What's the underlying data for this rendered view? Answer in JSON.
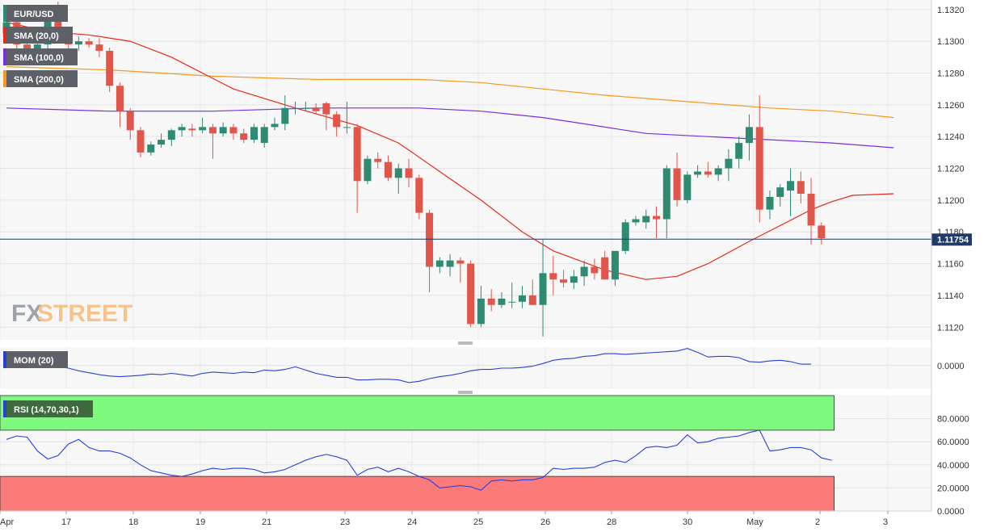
{
  "symbol": "EUR/USD",
  "indicators": {
    "sma20": "SMA (20,0)",
    "sma100": "SMA (100,0)",
    "sma200": "SMA (200,0)",
    "mom": "MOM (20)",
    "rsi": "RSI (14,70,30,1)"
  },
  "watermark": {
    "fx": "FX",
    "street": "STREET"
  },
  "colors": {
    "bull": "#2e8b72",
    "bear": "#e0564b",
    "sma20": "#e8291c",
    "sma100": "#7b2ee0",
    "sma200": "#f59a1e",
    "mom": "#2a3fd6",
    "rsi": "#2a3fd6",
    "overbought_band": "#7dfa7d",
    "oversold_band": "#fb7a7a",
    "price_line": "#1f3a6b"
  },
  "chart_data": [
    {
      "type": "candlestick",
      "timeframe": "4h",
      "ylim": [
        1.1112,
        1.1326
      ],
      "y_ticks": [
        "1.1320",
        "1.1300",
        "1.1280",
        "1.1260",
        "1.1240",
        "1.1220",
        "1.1200",
        "1.1180",
        "1.1160",
        "1.1140",
        "1.1120"
      ],
      "x_ticks": [
        "Apr",
        "17",
        "18",
        "19",
        "21",
        "23",
        "24",
        "25",
        "26",
        "28",
        "30",
        "May",
        "2",
        "3"
      ],
      "last_price": "1.11754",
      "last_price_value": 1.11754,
      "candles": [
        [
          1.1305,
          1.1318,
          1.13,
          1.1312
        ],
        [
          1.1312,
          1.1316,
          1.1294,
          1.1298
        ],
        [
          1.1298,
          1.1306,
          1.1288,
          1.1292
        ],
        [
          1.1292,
          1.1302,
          1.1286,
          1.1298
        ],
        [
          1.1298,
          1.1322,
          1.1294,
          1.1316
        ],
        [
          1.1316,
          1.1325,
          1.13,
          1.1304
        ],
        [
          1.1304,
          1.1306,
          1.1292,
          1.1298
        ],
        [
          1.1298,
          1.1303,
          1.1294,
          1.13
        ],
        [
          1.13,
          1.1302,
          1.1296,
          1.1298
        ],
        [
          1.1298,
          1.1302,
          1.129,
          1.1294
        ],
        [
          1.1294,
          1.1296,
          1.1268,
          1.1272
        ],
        [
          1.1272,
          1.1274,
          1.1246,
          1.1256
        ],
        [
          1.1256,
          1.1258,
          1.1238,
          1.1244
        ],
        [
          1.1244,
          1.1246,
          1.1227,
          1.123
        ],
        [
          1.123,
          1.1237,
          1.1228,
          1.1235
        ],
        [
          1.1235,
          1.1242,
          1.1233,
          1.1238
        ],
        [
          1.1238,
          1.1245,
          1.1234,
          1.1244
        ],
        [
          1.1244,
          1.1248,
          1.124,
          1.1246
        ],
        [
          1.1245,
          1.1248,
          1.124,
          1.1244
        ],
        [
          1.1244,
          1.1252,
          1.1242,
          1.1246
        ],
        [
          1.1246,
          1.1248,
          1.1226,
          1.1242
        ],
        [
          1.1242,
          1.1249,
          1.124,
          1.1246
        ],
        [
          1.1246,
          1.1248,
          1.1238,
          1.1242
        ],
        [
          1.1242,
          1.1245,
          1.1236,
          1.1238
        ],
        [
          1.1238,
          1.1248,
          1.1236,
          1.1246
        ],
        [
          1.1236,
          1.1248,
          1.1233,
          1.1246
        ],
        [
          1.1246,
          1.1252,
          1.1244,
          1.1248
        ],
        [
          1.1248,
          1.1266,
          1.1244,
          1.1258
        ],
        [
          1.1258,
          1.1262,
          1.1254,
          1.1258
        ],
        [
          1.1258,
          1.1262,
          1.1256,
          1.1258
        ],
        [
          1.1258,
          1.1261,
          1.1254,
          1.1256
        ],
        [
          1.1261,
          1.1262,
          1.1244,
          1.1254
        ],
        [
          1.1254,
          1.1256,
          1.124,
          1.1246
        ],
        [
          1.1246,
          1.1262,
          1.1242,
          1.1246
        ],
        [
          1.1246,
          1.1248,
          1.1192,
          1.1212
        ],
        [
          1.1212,
          1.1228,
          1.121,
          1.1226
        ],
        [
          1.1226,
          1.123,
          1.122,
          1.1224
        ],
        [
          1.1224,
          1.1228,
          1.1212,
          1.1214
        ],
        [
          1.1214,
          1.1223,
          1.1204,
          1.122
        ],
        [
          1.122,
          1.1226,
          1.1208,
          1.1214
        ],
        [
          1.1214,
          1.1216,
          1.1188,
          1.1192
        ],
        [
          1.1192,
          1.1194,
          1.1142,
          1.1158
        ],
        [
          1.1158,
          1.1164,
          1.1154,
          1.1162
        ],
        [
          1.1158,
          1.1166,
          1.1152,
          1.1162
        ],
        [
          1.1162,
          1.1164,
          1.1148,
          1.116
        ],
        [
          1.116,
          1.1162,
          1.112,
          1.1122
        ],
        [
          1.1122,
          1.1146,
          1.112,
          1.1138
        ],
        [
          1.1138,
          1.1144,
          1.113,
          1.1134
        ],
        [
          1.1134,
          1.1142,
          1.1132,
          1.1138
        ],
        [
          1.1136,
          1.1148,
          1.1132,
          1.1136
        ],
        [
          1.1136,
          1.1146,
          1.1132,
          1.114
        ],
        [
          1.114,
          1.115,
          1.1134,
          1.1134
        ],
        [
          1.1134,
          1.1175,
          1.1114,
          1.1154
        ],
        [
          1.1154,
          1.1165,
          1.114,
          1.115
        ],
        [
          1.115,
          1.1156,
          1.1145,
          1.1148
        ],
        [
          1.1148,
          1.1156,
          1.1144,
          1.1152
        ],
        [
          1.1152,
          1.1162,
          1.1146,
          1.1158
        ],
        [
          1.1158,
          1.1163,
          1.115,
          1.1154
        ],
        [
          1.1164,
          1.1168,
          1.115,
          1.115
        ],
        [
          1.115,
          1.1166,
          1.1146,
          1.1168
        ],
        [
          1.1168,
          1.1188,
          1.1166,
          1.1186
        ],
        [
          1.1186,
          1.119,
          1.1184,
          1.1188
        ],
        [
          1.1186,
          1.1194,
          1.1182,
          1.119
        ],
        [
          1.119,
          1.1196,
          1.1176,
          1.1188
        ],
        [
          1.1188,
          1.1222,
          1.1176,
          1.122
        ],
        [
          1.122,
          1.123,
          1.1196,
          1.12
        ],
        [
          1.12,
          1.1218,
          1.1198,
          1.1216
        ],
        [
          1.1216,
          1.1222,
          1.1214,
          1.1218
        ],
        [
          1.1218,
          1.1224,
          1.1214,
          1.1216
        ],
        [
          1.1216,
          1.1222,
          1.1212,
          1.122
        ],
        [
          1.122,
          1.1232,
          1.1212,
          1.1226
        ],
        [
          1.1226,
          1.124,
          1.122,
          1.1236
        ],
        [
          1.1236,
          1.1254,
          1.1225,
          1.1246
        ],
        [
          1.1246,
          1.1266,
          1.1186,
          1.1194
        ],
        [
          1.1194,
          1.1206,
          1.1188,
          1.1202
        ],
        [
          1.1202,
          1.121,
          1.1196,
          1.1208
        ],
        [
          1.1206,
          1.122,
          1.119,
          1.1212
        ],
        [
          1.1212,
          1.1218,
          1.1198,
          1.1204
        ],
        [
          1.1204,
          1.1214,
          1.1172,
          1.1184
        ],
        [
          1.1184,
          1.1186,
          1.1172,
          1.1176
        ]
      ],
      "sma20": [
        [
          0,
          1.1312
        ],
        [
          4,
          1.1306
        ],
        [
          8,
          1.1304
        ],
        [
          12,
          1.13
        ],
        [
          16,
          1.129
        ],
        [
          22,
          1.127
        ],
        [
          28,
          1.1258
        ],
        [
          34,
          1.1247
        ],
        [
          38,
          1.1236
        ],
        [
          42,
          1.1218
        ],
        [
          46,
          1.12
        ],
        [
          50,
          1.118
        ],
        [
          53,
          1.1168
        ],
        [
          58,
          1.1156
        ],
        [
          62,
          1.115
        ],
        [
          65,
          1.1152
        ],
        [
          68,
          1.116
        ],
        [
          72,
          1.1174
        ],
        [
          75,
          1.1184
        ],
        [
          78,
          1.1194
        ],
        [
          80,
          1.1199
        ],
        [
          82,
          1.1203
        ],
        [
          86,
          1.1204
        ]
      ],
      "sma100": [
        [
          0,
          1.1258
        ],
        [
          10,
          1.1256
        ],
        [
          20,
          1.1256
        ],
        [
          30,
          1.1258
        ],
        [
          40,
          1.1258
        ],
        [
          46,
          1.1256
        ],
        [
          52,
          1.1252
        ],
        [
          56,
          1.1248
        ],
        [
          62,
          1.1242
        ],
        [
          68,
          1.124
        ],
        [
          74,
          1.1238
        ],
        [
          80,
          1.1236
        ],
        [
          86,
          1.1233
        ]
      ],
      "sma200": [
        [
          0,
          1.1284
        ],
        [
          10,
          1.1282
        ],
        [
          20,
          1.1278
        ],
        [
          30,
          1.1276
        ],
        [
          40,
          1.1276
        ],
        [
          46,
          1.1274
        ],
        [
          52,
          1.127
        ],
        [
          58,
          1.1266
        ],
        [
          66,
          1.1262
        ],
        [
          74,
          1.1258
        ],
        [
          80,
          1.1256
        ],
        [
          86,
          1.1252
        ]
      ]
    },
    {
      "type": "line",
      "name": "MOM (20)",
      "y_ticks": [
        "0.0000"
      ],
      "zero_level": 0,
      "ylim": [
        -0.0036,
        0.0028
      ],
      "values": [
        0.0012,
        0.0013,
        0.0011,
        0.0007,
        0.0003,
        -0.0002,
        -0.0004,
        -0.0008,
        -0.0011,
        -0.0014,
        -0.0016,
        -0.0017,
        -0.0016,
        -0.0015,
        -0.0013,
        -0.0014,
        -0.0012,
        -0.0014,
        -0.0016,
        -0.0012,
        -0.001,
        -0.0011,
        -0.0012,
        -0.001,
        -0.0011,
        -0.0007,
        -0.0008,
        -0.0006,
        -0.0002,
        -0.0007,
        -0.0012,
        -0.0015,
        -0.0018,
        -0.0018,
        -0.0022,
        -0.0022,
        -0.0021,
        -0.0021,
        -0.0022,
        -0.0026,
        -0.0024,
        -0.002,
        -0.0017,
        -0.0015,
        -0.0012,
        -0.0008,
        -0.0006,
        -0.0006,
        -0.0004,
        -0.0004,
        -0.0003,
        -0.0001,
        0.0003,
        0.0008,
        0.001,
        0.0011,
        0.0014,
        0.0015,
        0.0018,
        0.0018,
        0.0017,
        0.0018,
        0.0019,
        0.002,
        0.0021,
        0.0022,
        0.0026,
        0.002,
        0.0013,
        0.0014,
        0.0014,
        0.0012,
        0.0006,
        0.0005,
        0.0007,
        0.0008,
        0.0006,
        0.0002,
        0.0002
      ]
    },
    {
      "type": "line",
      "name": "RSI (14,70,30,1)",
      "ylim": [
        0,
        100
      ],
      "y_ticks": [
        "80.0000",
        "60.0000",
        "40.0000",
        "20.0000",
        "0.0000"
      ],
      "overbought": 70,
      "oversold": 30,
      "values": [
        62,
        65,
        64,
        52,
        45,
        48,
        58,
        62,
        55,
        52,
        52,
        50,
        46,
        40,
        35,
        33,
        31,
        30,
        32,
        35,
        37,
        36,
        37,
        37,
        36,
        33,
        34,
        36,
        40,
        44,
        47,
        49,
        47,
        44,
        31,
        36,
        38,
        34,
        37,
        34,
        30,
        27,
        20,
        21,
        22,
        21,
        18,
        26,
        27,
        26,
        27,
        27,
        29,
        37,
        36,
        37,
        37,
        38,
        42,
        44,
        42,
        48,
        55,
        56,
        55,
        57,
        66,
        59,
        60,
        63,
        64,
        65,
        68,
        70,
        52,
        53,
        55,
        55,
        53,
        46,
        44
      ]
    }
  ]
}
